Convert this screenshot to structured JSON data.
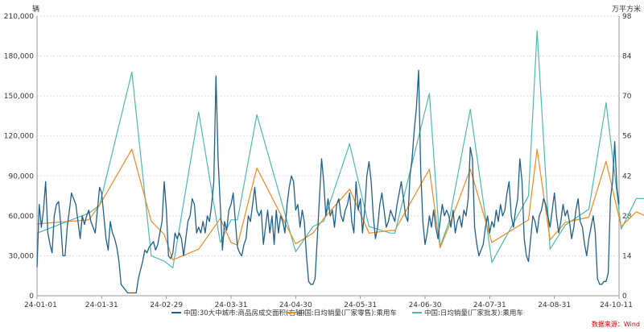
{
  "chart_data": {
    "type": "line",
    "y_left_unit": "辆",
    "y_right_unit": "万平方米",
    "y_left_ticks": [
      "0",
      "30,000",
      "60,000",
      "90,000",
      "120,000",
      "150,000",
      "180,000",
      "210,000"
    ],
    "y_right_ticks": [
      "0",
      "14",
      "28",
      "42",
      "56",
      "70",
      "84",
      "98"
    ],
    "ylim_left": [
      0,
      210000
    ],
    "ylim_right": [
      0,
      98
    ],
    "x_ticks": [
      "24-01-01",
      "24-01-31",
      "24-02-29",
      "24-03-31",
      "24-04-30",
      "24-05-31",
      "24-06-30",
      "24-07-31",
      "24-08-31",
      "24-10-11"
    ],
    "grid": "horizontal",
    "legend_position": "bottom",
    "source": "数据来源：Wind",
    "series": [
      {
        "name": "中国:30大中城市:商品房成交面积(右轴)",
        "axis": "right",
        "color": "#1f5f8b",
        "values": [
          10,
          32,
          24,
          30,
          40,
          22,
          18,
          15,
          28,
          32,
          33,
          25,
          14,
          14,
          24,
          30,
          36,
          34,
          32,
          26,
          20,
          28,
          25,
          28,
          30,
          26,
          24,
          22,
          30,
          38,
          36,
          28,
          20,
          16,
          26,
          22,
          20,
          17,
          12,
          4,
          3,
          2,
          1,
          1,
          1,
          1,
          1,
          6,
          9,
          12,
          16,
          15,
          17,
          18,
          19,
          16,
          18,
          22,
          26,
          40,
          30,
          14,
          13,
          15,
          22,
          20,
          22,
          20,
          14,
          20,
          26,
          28,
          34,
          32,
          22,
          24,
          22,
          26,
          22,
          28,
          26,
          32,
          40,
          77,
          48,
          32,
          16,
          26,
          23,
          30,
          32,
          36,
          26,
          17,
          15,
          14,
          18,
          20,
          28,
          26,
          32,
          38,
          30,
          28,
          30,
          18,
          24,
          30,
          22,
          28,
          18,
          30,
          22,
          28,
          26,
          22,
          32,
          38,
          42,
          40,
          30,
          32,
          24,
          30,
          26,
          14,
          5,
          4,
          4,
          6,
          20,
          34,
          48,
          40,
          28,
          34,
          28,
          30,
          24,
          32,
          34,
          28,
          26,
          30,
          32,
          36,
          26,
          22,
          40,
          30,
          34,
          22,
          30,
          42,
          47,
          40,
          28,
          20,
          24,
          32,
          36,
          30,
          24,
          26,
          30,
          28,
          26,
          32,
          36,
          40,
          34,
          28,
          26,
          42,
          48,
          58,
          66,
          79,
          44,
          26,
          18,
          22,
          28,
          24,
          30,
          24,
          20,
          26,
          32,
          28,
          30,
          28,
          24,
          30,
          22,
          26,
          28,
          24,
          30,
          28,
          34,
          52,
          48,
          24,
          18,
          14,
          16,
          18,
          24,
          28,
          22,
          26,
          24,
          30,
          26,
          32,
          28,
          30,
          36,
          40,
          28,
          24,
          30,
          34,
          48,
          40,
          20,
          14,
          12,
          20,
          28,
          26,
          22,
          28,
          30,
          34,
          32,
          28,
          24,
          30,
          36,
          28,
          22,
          26,
          32,
          28,
          30,
          26,
          20,
          24,
          30,
          34,
          26,
          24,
          18,
          14,
          20,
          24,
          28,
          22,
          6,
          4,
          4,
          5,
          5,
          8,
          34,
          40,
          54,
          38,
          32
        ]
      },
      {
        "name": "中国:日均销量(厂家零售):乘用车",
        "axis": "left",
        "color": "#f0891f",
        "x_index": [
          0,
          24,
          29,
          44,
          53,
          59,
          63,
          75,
          85,
          90,
          93,
          102,
          120,
          128,
          133,
          145,
          154,
          164,
          166,
          182,
          187,
          191,
          201,
          211,
          228,
          232,
          238,
          245,
          256,
          264,
          271,
          278,
          285,
          287
        ],
        "values": [
          54000,
          57000,
          68000,
          110000,
          56000,
          46000,
          27000,
          35000,
          58000,
          40000,
          38000,
          96000,
          39000,
          47000,
          58000,
          80000,
          47000,
          49000,
          49000,
          95000,
          36000,
          52000,
          95000,
          40000,
          57000,
          110000,
          42000,
          55000,
          59000,
          101000,
          52000,
          63000,
          58000,
          100000
        ]
      },
      {
        "name": "中国:日均销量(厂家批发):乘用车",
        "axis": "left",
        "color": "#4bbab0",
        "x_index": [
          0,
          24,
          29,
          44,
          53,
          59,
          63,
          75,
          85,
          90,
          93,
          102,
          120,
          128,
          133,
          145,
          154,
          164,
          166,
          182,
          187,
          191,
          201,
          211,
          228,
          232,
          238,
          245,
          256,
          264,
          271,
          278,
          285,
          287
        ],
        "values": [
          47000,
          62000,
          68000,
          168000,
          30000,
          26000,
          21000,
          138000,
          40000,
          57000,
          57000,
          136000,
          33000,
          52000,
          56000,
          114000,
          52000,
          47000,
          47000,
          152000,
          37000,
          55000,
          140000,
          25000,
          75000,
          199000,
          35000,
          53000,
          65000,
          145000,
          50000,
          73000,
          73000,
          137000
        ]
      }
    ]
  }
}
